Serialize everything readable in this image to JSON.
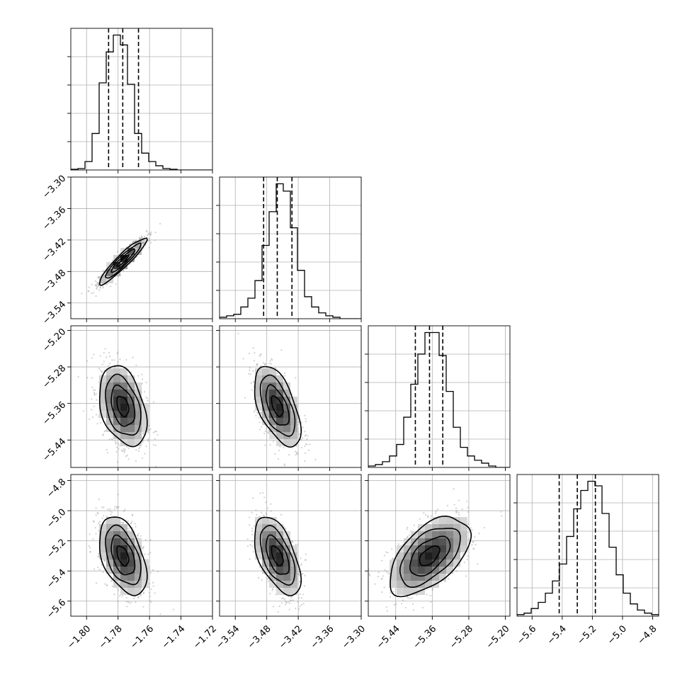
{
  "chart_data": {
    "type": "corner",
    "grid": true,
    "parameters": [
      {
        "index": 0,
        "range": [
          -1.81,
          -1.72
        ],
        "ticks": [
          -1.8,
          -1.78,
          -1.76,
          -1.74,
          -1.72
        ],
        "tick_labels": [
          "−1.80",
          "−1.78",
          "−1.76",
          "−1.74",
          "−1.72"
        ],
        "quantiles": [
          -1.786,
          -1.777,
          -1.767
        ],
        "histogram": [
          0.5,
          1,
          6,
          26,
          62,
          84,
          96,
          89,
          61,
          26,
          12,
          6,
          3,
          1,
          0.5,
          0,
          0,
          0,
          0,
          0
        ]
      },
      {
        "index": 1,
        "range": [
          -3.57,
          -3.3
        ],
        "ticks": [
          -3.54,
          -3.48,
          -3.42,
          -3.36,
          -3.3
        ],
        "tick_labels": [
          "−3.54",
          "−3.48",
          "−3.42",
          "−3.36",
          "−3.30"
        ],
        "quantiles": [
          -3.486,
          -3.46,
          -3.432
        ],
        "histogram": [
          1,
          2,
          3,
          8,
          14,
          26,
          50,
          73,
          92,
          87,
          62,
          33,
          15,
          8,
          4,
          2,
          1,
          0,
          0,
          0
        ]
      },
      {
        "index": 2,
        "range": [
          -5.5,
          -5.19
        ],
        "ticks": [
          -5.44,
          -5.36,
          -5.28,
          -5.2
        ],
        "tick_labels": [
          "−5.44",
          "−5.36",
          "−5.28",
          "−5.20"
        ],
        "quantiles": [
          -5.397,
          -5.366,
          -5.337
        ],
        "histogram": [
          1,
          2,
          4,
          8,
          16,
          35,
          58,
          79,
          94,
          94,
          78,
          53,
          28,
          14,
          8,
          5,
          3,
          1,
          0,
          0
        ]
      },
      {
        "index": 3,
        "range": [
          -5.7,
          -4.76
        ],
        "ticks": [
          -5.6,
          -5.4,
          -5.2,
          -5.0,
          -4.8
        ],
        "tick_labels": [
          "−5.6",
          "−5.4",
          "−5.2",
          "−5.0",
          "−4.8"
        ],
        "quantiles": [
          -5.42,
          -5.3,
          -5.18
        ],
        "histogram": [
          1,
          2,
          5,
          9,
          15,
          23,
          34,
          52,
          70,
          82,
          88,
          85,
          67,
          45,
          27,
          15,
          8,
          4,
          2,
          1
        ]
      }
    ],
    "pair_panels": [
      {
        "x_param": 0,
        "y_param": 1,
        "center": [
          -1.777,
          -3.46
        ],
        "sigma": [
          0.0075,
          0.022
        ],
        "correlation": 0.93
      },
      {
        "x_param": 0,
        "y_param": 2,
        "center": [
          -1.777,
          -5.366
        ],
        "sigma": [
          0.0075,
          0.044
        ],
        "correlation": -0.35
      },
      {
        "x_param": 1,
        "y_param": 2,
        "center": [
          -3.46,
          -5.366
        ],
        "sigma": [
          0.022,
          0.044
        ],
        "correlation": -0.55
      },
      {
        "x_param": 0,
        "y_param": 3,
        "center": [
          -1.777,
          -5.3
        ],
        "sigma": [
          0.0075,
          0.13
        ],
        "correlation": -0.45
      },
      {
        "x_param": 1,
        "y_param": 3,
        "center": [
          -3.46,
          -5.3
        ],
        "sigma": [
          0.022,
          0.13
        ],
        "correlation": -0.55
      },
      {
        "x_param": 2,
        "y_param": 3,
        "center": [
          -5.366,
          -5.3
        ],
        "sigma": [
          0.044,
          0.13
        ],
        "correlation": 0.55
      }
    ],
    "contour_levels_sigma": [
      0.5,
      1.0,
      1.5,
      2.0
    ]
  }
}
